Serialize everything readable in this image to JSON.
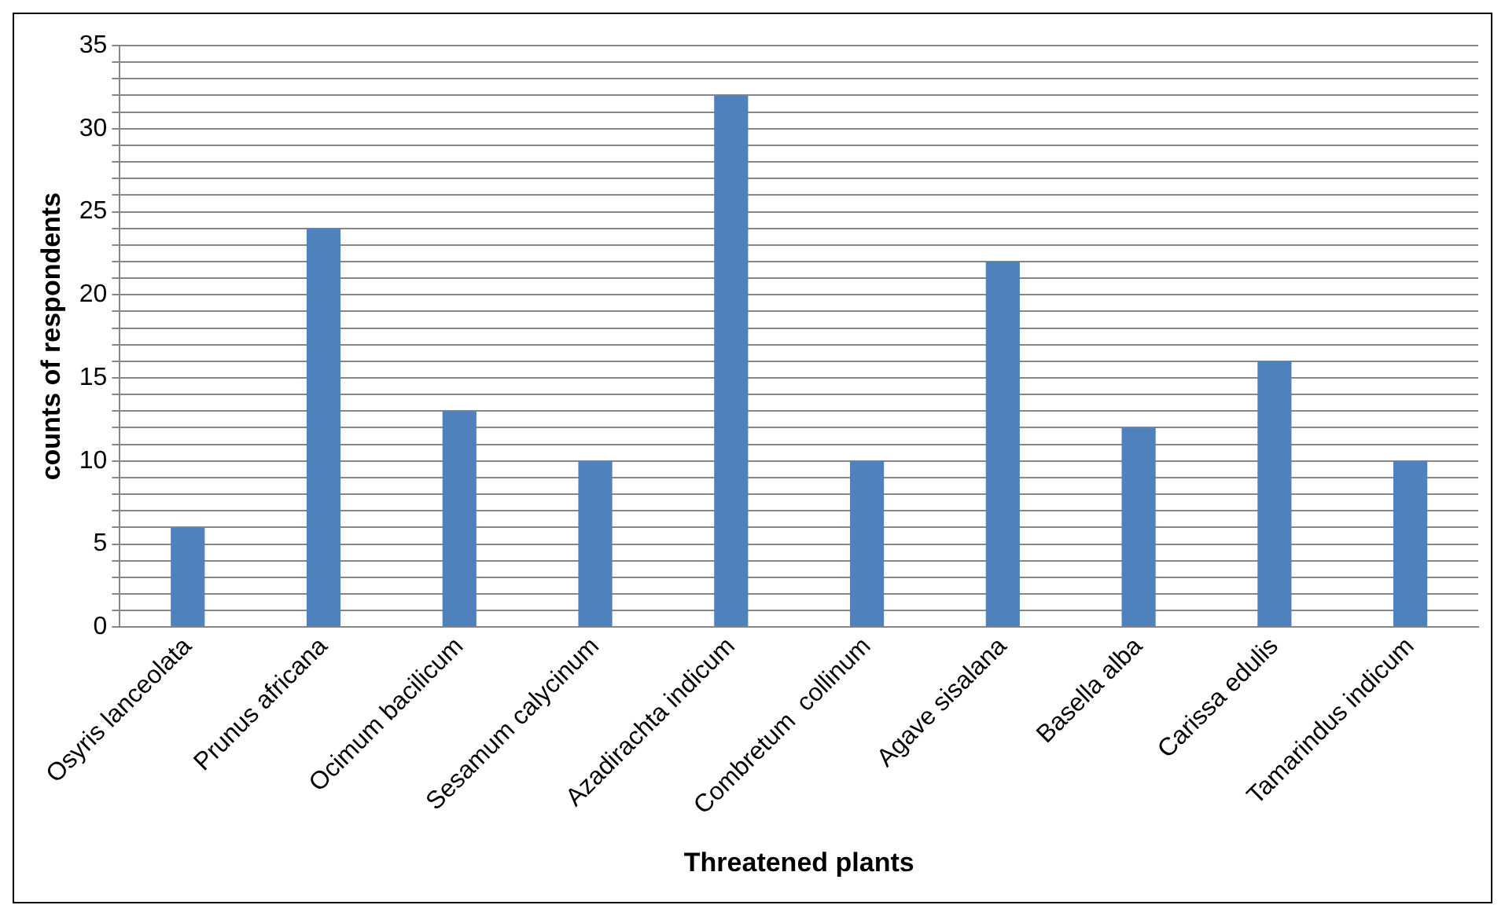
{
  "chart_data": {
    "type": "bar",
    "xlabel": "Threatened plants",
    "ylabel": "counts of respondents",
    "categories": [
      "Osyris lanceolata",
      "Prunus africana",
      "Ocimum bacilicum",
      "Sesamum calycinum",
      "Azadirachta indicum",
      "Combretum  collinum",
      "Agave sisalana",
      "Basella alba",
      "Carissa edulis",
      "Tamarindus indicum"
    ],
    "values": [
      6,
      24,
      13,
      10,
      32,
      10,
      22,
      12,
      16,
      10
    ],
    "color": "#4f81bd",
    "ylim": [
      0,
      35
    ],
    "yticks": [
      0,
      {
        "value": 1,
        "label": null
      },
      {
        "value": 2,
        "label": null
      },
      {
        "value": 3,
        "label": null
      },
      {
        "value": 4,
        "label": null
      },
      5,
      {
        "value": 6,
        "label": null
      },
      {
        "value": 7,
        "label": null
      },
      {
        "value": 8,
        "label": null
      },
      {
        "value": 9,
        "label": null
      },
      10,
      {
        "value": 11,
        "label": null
      },
      {
        "value": 12,
        "label": null
      },
      {
        "value": 13,
        "label": null
      },
      {
        "value": 14,
        "label": null
      },
      15,
      {
        "value": 16,
        "label": null
      },
      {
        "value": 17,
        "label": null
      },
      {
        "value": 18,
        "label": null
      },
      {
        "value": 19,
        "label": null
      },
      20,
      {
        "value": 21,
        "label": null
      },
      {
        "value": 22,
        "label": null
      },
      {
        "value": 23,
        "label": null
      },
      {
        "value": 24,
        "label": null
      },
      25,
      {
        "value": 26,
        "label": null
      },
      {
        "value": 27,
        "label": null
      },
      {
        "value": 28,
        "label": null
      },
      {
        "value": 29,
        "label": null
      },
      30,
      {
        "value": 31,
        "label": null
      },
      {
        "value": 32,
        "label": null
      },
      {
        "value": 33,
        "label": null
      },
      {
        "value": 34,
        "label": null
      },
      35
    ],
    "grid": "y",
    "legend": false
  }
}
